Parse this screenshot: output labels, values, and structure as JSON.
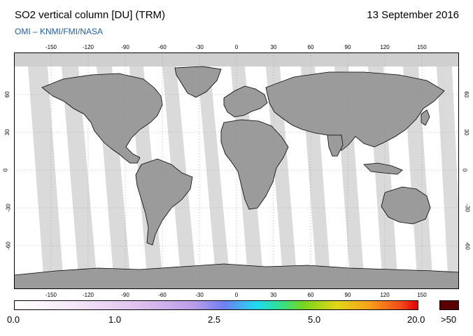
{
  "header": {
    "title": "SO2 vertical column [DU] (TRM)",
    "date": "13 September 2016",
    "credit": "OMI  –  KNMI/FMI/NASA"
  },
  "map": {
    "lon_ticks": [
      "-150",
      "-120",
      "-90",
      "-60",
      "-30",
      "0",
      "30",
      "60",
      "90",
      "120",
      "150"
    ],
    "lat_ticks": [
      "60",
      "30",
      "0",
      "-30",
      "-60"
    ],
    "lon_range": [
      -180,
      180
    ],
    "lat_range": [
      -90,
      90
    ],
    "colors": {
      "land": "#9b9b9b",
      "no_data": "#cfcfcf",
      "ocean": "#ffffff",
      "orbit_gap": "#d7d7d7"
    },
    "projection": "equirectangular"
  },
  "colorbar": {
    "labels": [
      "0.0",
      "1.0",
      "2.5",
      "5.0",
      "20.0"
    ],
    "over_label": ">50",
    "over_color": "#5b0000"
  }
}
